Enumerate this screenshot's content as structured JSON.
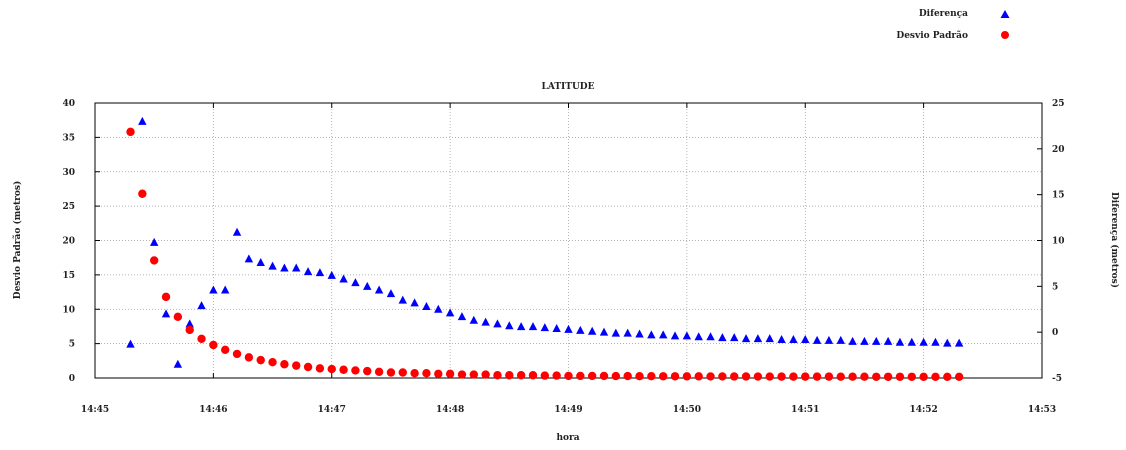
{
  "chart_data": {
    "type": "scatter",
    "title": "LATITUDE",
    "xlabel": "hora",
    "ylabel_left": "Desvio Padrão (metros)",
    "ylabel_right": "Diferença (metros)",
    "x_ticks": [
      "14:45",
      "14:46",
      "14:47",
      "14:48",
      "14:49",
      "14:50",
      "14:51",
      "14:52",
      "14:53"
    ],
    "x_range_minutes": [
      0,
      8
    ],
    "y_left_ticks": [
      0,
      5,
      10,
      15,
      20,
      25,
      30,
      35,
      40
    ],
    "y_left_range": [
      0,
      40
    ],
    "y_right_ticks": [
      -5,
      0,
      5,
      10,
      15,
      20,
      25
    ],
    "y_right_range": [
      -5,
      25
    ],
    "grid": true,
    "legend_position": "top-right, outside plot",
    "series": [
      {
        "name": "Diferença",
        "axis": "right",
        "marker": "triangle",
        "color": "#0000ff",
        "x": [
          0.3,
          0.4,
          0.5,
          0.6,
          0.7,
          0.8,
          0.9,
          1.0,
          1.1,
          1.2,
          1.3,
          1.4,
          1.5,
          1.6,
          1.7,
          1.8,
          1.9,
          2.0,
          2.1,
          2.2,
          2.3,
          2.4,
          2.5,
          2.6,
          2.7,
          2.8,
          2.9,
          3.0,
          3.1,
          3.2,
          3.3,
          3.4,
          3.5,
          3.6,
          3.7,
          3.8,
          3.9,
          4.0,
          4.1,
          4.2,
          4.3,
          4.4,
          4.5,
          4.6,
          4.7,
          4.8,
          4.9,
          5.0,
          5.1,
          5.2,
          5.3,
          5.4,
          5.5,
          5.6,
          5.7,
          5.8,
          5.9,
          6.0,
          6.1,
          6.2,
          6.3,
          6.4,
          6.5,
          6.6,
          6.7,
          6.8,
          6.9,
          7.0,
          7.1,
          7.2,
          7.3
        ],
        "y": [
          -1.3,
          23.0,
          9.8,
          2.0,
          -3.5,
          0.9,
          2.9,
          4.6,
          4.6,
          10.9,
          8.0,
          7.6,
          7.2,
          7.0,
          7.0,
          6.6,
          6.5,
          6.2,
          5.8,
          5.4,
          5.0,
          4.6,
          4.2,
          3.5,
          3.2,
          2.8,
          2.5,
          2.1,
          1.7,
          1.3,
          1.1,
          0.9,
          0.7,
          0.6,
          0.6,
          0.5,
          0.4,
          0.3,
          0.2,
          0.1,
          0.0,
          -0.1,
          -0.1,
          -0.2,
          -0.3,
          -0.3,
          -0.4,
          -0.4,
          -0.5,
          -0.5,
          -0.6,
          -0.6,
          -0.7,
          -0.7,
          -0.7,
          -0.8,
          -0.8,
          -0.8,
          -0.9,
          -0.9,
          -0.9,
          -1.0,
          -1.0,
          -1.0,
          -1.0,
          -1.1,
          -1.1,
          -1.1,
          -1.1,
          -1.2,
          -1.2
        ]
      },
      {
        "name": "Desvio Padrão",
        "axis": "left",
        "marker": "circle",
        "color": "#ff0000",
        "x": [
          0.3,
          0.4,
          0.5,
          0.6,
          0.7,
          0.8,
          0.9,
          1.0,
          1.1,
          1.2,
          1.3,
          1.4,
          1.5,
          1.6,
          1.7,
          1.8,
          1.9,
          2.0,
          2.1,
          2.2,
          2.3,
          2.4,
          2.5,
          2.6,
          2.7,
          2.8,
          2.9,
          3.0,
          3.1,
          3.2,
          3.3,
          3.4,
          3.5,
          3.6,
          3.7,
          3.8,
          3.9,
          4.0,
          4.1,
          4.2,
          4.3,
          4.4,
          4.5,
          4.6,
          4.7,
          4.8,
          4.9,
          5.0,
          5.1,
          5.2,
          5.3,
          5.4,
          5.5,
          5.6,
          5.7,
          5.8,
          5.9,
          6.0,
          6.1,
          6.2,
          6.3,
          6.4,
          6.5,
          6.6,
          6.7,
          6.8,
          6.9,
          7.0,
          7.1,
          7.2,
          7.3
        ],
        "y": [
          35.8,
          26.8,
          17.1,
          11.8,
          8.9,
          7.0,
          5.7,
          4.8,
          4.1,
          3.5,
          3.0,
          2.6,
          2.3,
          2.0,
          1.8,
          1.6,
          1.4,
          1.3,
          1.2,
          1.1,
          1.0,
          0.9,
          0.8,
          0.8,
          0.7,
          0.7,
          0.6,
          0.6,
          0.5,
          0.5,
          0.5,
          0.4,
          0.4,
          0.4,
          0.4,
          0.35,
          0.35,
          0.3,
          0.3,
          0.3,
          0.3,
          0.28,
          0.28,
          0.26,
          0.26,
          0.25,
          0.25,
          0.24,
          0.24,
          0.23,
          0.23,
          0.22,
          0.22,
          0.21,
          0.21,
          0.2,
          0.2,
          0.2,
          0.2,
          0.2,
          0.19,
          0.19,
          0.19,
          0.18,
          0.18,
          0.18,
          0.18,
          0.17,
          0.17,
          0.17,
          0.17
        ]
      }
    ]
  }
}
